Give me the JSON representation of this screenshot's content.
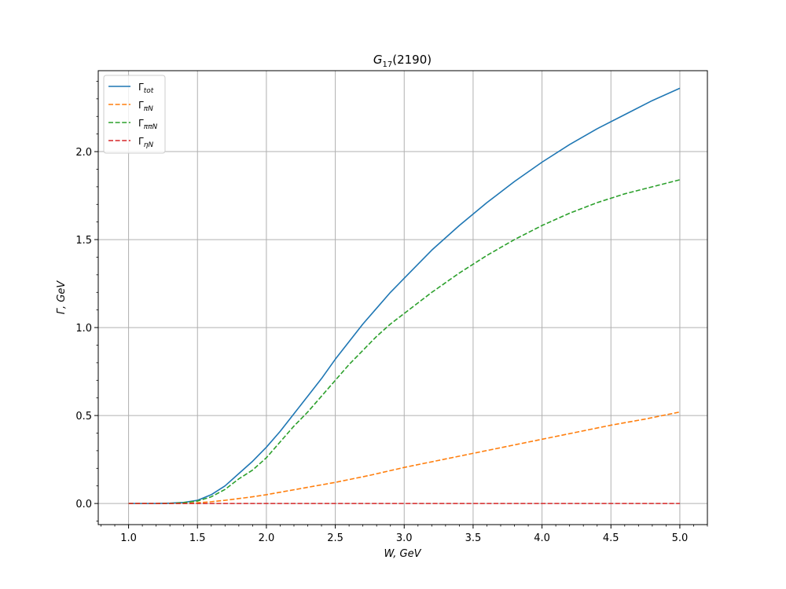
{
  "chart_data": {
    "type": "line",
    "title_main": "G",
    "title_sub": "17",
    "title_rest": "(2190)",
    "xlabel": "W, GeV",
    "ylabel": "Γ,  GeV",
    "xlim": [
      0.78,
      5.2
    ],
    "ylim": [
      -0.12,
      2.46
    ],
    "xticks": [
      1.0,
      1.5,
      2.0,
      2.5,
      3.0,
      3.5,
      4.0,
      4.5,
      5.0
    ],
    "xtick_labels": [
      "1.0",
      "1.5",
      "2.0",
      "2.5",
      "3.0",
      "3.5",
      "4.0",
      "4.5",
      "5.0"
    ],
    "yticks": [
      0.0,
      0.5,
      1.0,
      1.5,
      2.0
    ],
    "ytick_labels": [
      "0.0",
      "0.5",
      "1.0",
      "1.5",
      "2.0"
    ],
    "grid": true,
    "legend_position": "top-left",
    "series": [
      {
        "label_main": "Γ",
        "label_sub": "tot",
        "color": "#1f77b4",
        "style": "solid",
        "x": [
          1.0,
          1.2,
          1.3,
          1.4,
          1.5,
          1.6,
          1.7,
          1.8,
          1.9,
          2.0,
          2.1,
          2.2,
          2.3,
          2.4,
          2.5,
          2.6,
          2.7,
          2.8,
          2.9,
          3.0,
          3.2,
          3.4,
          3.6,
          3.8,
          4.0,
          4.2,
          4.4,
          4.6,
          4.8,
          5.0
        ],
        "y": [
          0.0,
          0.0,
          0.002,
          0.006,
          0.018,
          0.05,
          0.1,
          0.17,
          0.24,
          0.32,
          0.41,
          0.51,
          0.61,
          0.71,
          0.82,
          0.92,
          1.02,
          1.11,
          1.2,
          1.28,
          1.44,
          1.58,
          1.71,
          1.83,
          1.94,
          2.04,
          2.13,
          2.21,
          2.29,
          2.36
        ]
      },
      {
        "label_main": "Γ",
        "label_sub": "πN",
        "color": "#ff7f0e",
        "style": "dashed",
        "x": [
          1.0,
          1.2,
          1.4,
          1.5,
          1.6,
          1.7,
          1.8,
          1.9,
          2.0,
          2.25,
          2.5,
          2.75,
          3.0,
          3.25,
          3.5,
          3.75,
          4.0,
          4.25,
          4.5,
          4.75,
          5.0
        ],
        "y": [
          0.0,
          0.0,
          0.001,
          0.004,
          0.01,
          0.018,
          0.028,
          0.038,
          0.05,
          0.085,
          0.12,
          0.16,
          0.205,
          0.245,
          0.285,
          0.325,
          0.365,
          0.405,
          0.445,
          0.48,
          0.52
        ]
      },
      {
        "label_main": "Γ",
        "label_sub": "ππN",
        "color": "#2ca02c",
        "style": "dashed",
        "x": [
          1.0,
          1.2,
          1.3,
          1.4,
          1.5,
          1.6,
          1.7,
          1.8,
          1.9,
          2.0,
          2.1,
          2.2,
          2.3,
          2.4,
          2.5,
          2.6,
          2.7,
          2.8,
          2.9,
          3.0,
          3.2,
          3.4,
          3.6,
          3.8,
          4.0,
          4.2,
          4.4,
          4.6,
          4.8,
          5.0
        ],
        "y": [
          0.0,
          0.0,
          0.001,
          0.005,
          0.014,
          0.038,
          0.08,
          0.14,
          0.19,
          0.26,
          0.35,
          0.44,
          0.52,
          0.61,
          0.7,
          0.79,
          0.87,
          0.95,
          1.02,
          1.08,
          1.2,
          1.31,
          1.41,
          1.5,
          1.58,
          1.65,
          1.71,
          1.76,
          1.8,
          1.84
        ]
      },
      {
        "label_main": "Γ",
        "label_sub": "ηN",
        "color": "#d62728",
        "style": "dashed",
        "x": [
          1.0,
          5.0
        ],
        "y": [
          0.0,
          0.0
        ]
      }
    ]
  }
}
